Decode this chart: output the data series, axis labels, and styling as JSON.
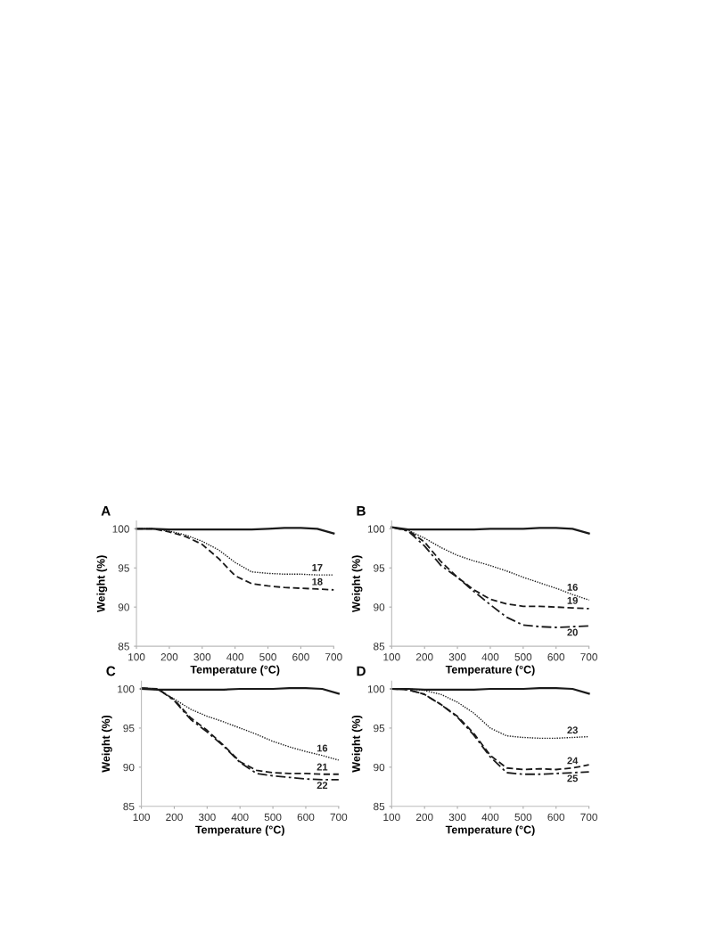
{
  "chart_data": [
    {
      "type": "line",
      "title": "A",
      "xlabel": "Temperature (°C)",
      "ylabel": "Weight (%)",
      "xlim": [
        100,
        700
      ],
      "xticks": [
        100,
        200,
        300,
        400,
        500,
        600,
        700
      ],
      "ylim": [
        85,
        101
      ],
      "yticks": [
        85,
        90,
        95,
        100
      ],
      "grid": false,
      "legend": false,
      "x": [
        100,
        150,
        200,
        250,
        300,
        350,
        400,
        450,
        500,
        550,
        600,
        650,
        700
      ],
      "series": [
        {
          "color": "#1a1a1a",
          "line_style": "solid",
          "values": [
            100,
            100,
            99.9,
            99.9,
            99.9,
            99.9,
            99.9,
            99.9,
            100,
            100.1,
            100.1,
            100,
            99.4
          ]
        },
        {
          "name": "17",
          "color": "#1a1a1a",
          "line_style": "dotted",
          "values": [
            100,
            100,
            99.7,
            99.2,
            98.4,
            97.3,
            95.7,
            94.5,
            94.3,
            94.2,
            94.2,
            94.1,
            94.1
          ]
        },
        {
          "name": "18",
          "color": "#1a1a1a",
          "line_style": "dashed",
          "values": [
            100,
            100,
            99.6,
            99.0,
            98.0,
            96.2,
            94.0,
            93.0,
            92.7,
            92.5,
            92.4,
            92.3,
            92.2
          ]
        }
      ]
    },
    {
      "type": "line",
      "title": "B",
      "xlabel": "Temperature (°C)",
      "ylabel": "Weight (%)",
      "xlim": [
        100,
        700
      ],
      "xticks": [
        100,
        200,
        300,
        400,
        500,
        600,
        700
      ],
      "ylim": [
        85,
        101
      ],
      "yticks": [
        85,
        90,
        95,
        100
      ],
      "grid": false,
      "legend": false,
      "x": [
        100,
        150,
        200,
        250,
        300,
        350,
        400,
        450,
        500,
        550,
        600,
        650,
        700
      ],
      "series": [
        {
          "color": "#1a1a1a",
          "line_style": "solid",
          "values": [
            100.2,
            99.9,
            99.9,
            99.9,
            99.9,
            99.9,
            100,
            100,
            100,
            100.1,
            100.1,
            100,
            99.4
          ]
        },
        {
          "name": "16",
          "color": "#1a1a1a",
          "line_style": "dotted",
          "values": [
            100.2,
            99.8,
            98.8,
            97.6,
            96.6,
            95.9,
            95.3,
            94.6,
            93.8,
            93.1,
            92.4,
            91.6,
            90.9
          ]
        },
        {
          "name": "19",
          "color": "#1a1a1a",
          "line_style": "dashed",
          "values": [
            100.2,
            99.8,
            98.3,
            95.8,
            93.8,
            92.2,
            91.0,
            90.4,
            90.1,
            90.1,
            90.0,
            89.9,
            89.8
          ]
        },
        {
          "name": "20",
          "color": "#1a1a1a",
          "line_style": "dashdot",
          "values": [
            100.2,
            99.7,
            97.8,
            95.3,
            93.8,
            92.0,
            90.3,
            88.7,
            87.7,
            87.5,
            87.4,
            87.5,
            87.6
          ]
        }
      ]
    },
    {
      "type": "line",
      "title": "C",
      "xlabel": "Temperature (°C)",
      "ylabel": "Weight (%)",
      "xlim": [
        100,
        700
      ],
      "xticks": [
        100,
        200,
        300,
        400,
        500,
        600,
        700
      ],
      "ylim": [
        85,
        101
      ],
      "yticks": [
        85,
        90,
        95,
        100
      ],
      "grid": false,
      "legend": false,
      "x": [
        100,
        150,
        200,
        250,
        300,
        350,
        400,
        450,
        500,
        550,
        600,
        650,
        700
      ],
      "series": [
        {
          "color": "#1a1a1a",
          "line_style": "solid",
          "values": [
            100,
            99.9,
            99.9,
            99.9,
            99.9,
            99.9,
            100,
            100,
            100,
            100.1,
            100.1,
            100,
            99.4
          ]
        },
        {
          "name": "16",
          "color": "#1a1a1a",
          "line_style": "dotted",
          "values": [
            100.1,
            99.9,
            98.7,
            97.4,
            96.5,
            95.8,
            95.0,
            94.2,
            93.3,
            92.6,
            92.0,
            91.5,
            90.9
          ]
        },
        {
          "name": "21",
          "color": "#1a1a1a",
          "line_style": "dashed",
          "values": [
            100.1,
            100,
            98.6,
            96.3,
            94.7,
            92.8,
            90.7,
            89.6,
            89.3,
            89.2,
            89.2,
            89.1,
            89.1
          ]
        },
        {
          "name": "22",
          "color": "#1a1a1a",
          "line_style": "dashdot",
          "values": [
            100.1,
            100,
            98.5,
            96.1,
            94.5,
            92.7,
            90.6,
            89.2,
            88.9,
            88.7,
            88.5,
            88.4,
            88.4
          ]
        }
      ]
    },
    {
      "type": "line",
      "title": "D",
      "xlabel": "Temperature (°C)",
      "ylabel": "Weight (%)",
      "xlim": [
        100,
        700
      ],
      "xticks": [
        100,
        200,
        300,
        400,
        500,
        600,
        700
      ],
      "ylim": [
        85,
        101
      ],
      "yticks": [
        85,
        90,
        95,
        100
      ],
      "grid": false,
      "legend": false,
      "x": [
        100,
        150,
        200,
        250,
        300,
        350,
        400,
        450,
        500,
        550,
        600,
        650,
        700
      ],
      "series": [
        {
          "color": "#1a1a1a",
          "line_style": "solid",
          "values": [
            100,
            100,
            99.9,
            99.9,
            99.9,
            99.9,
            100,
            100,
            100,
            100.1,
            100.1,
            100,
            99.4
          ]
        },
        {
          "name": "23",
          "color": "#1a1a1a",
          "line_style": "dotted",
          "values": [
            100,
            100,
            99.8,
            99.3,
            98.3,
            96.9,
            95.0,
            94.0,
            93.8,
            93.7,
            93.7,
            93.8,
            93.9
          ]
        },
        {
          "name": "24",
          "color": "#1a1a1a",
          "line_style": "dashed",
          "values": [
            100,
            99.9,
            99.3,
            98.0,
            96.5,
            94.3,
            91.5,
            89.9,
            89.7,
            89.8,
            89.7,
            89.9,
            90.3
          ]
        },
        {
          "name": "25",
          "color": "#1a1a1a",
          "line_style": "dashdot",
          "values": [
            100,
            99.9,
            99.3,
            98.0,
            96.4,
            94.1,
            91.3,
            89.3,
            89.1,
            89.1,
            89.2,
            89.3,
            89.4
          ]
        }
      ]
    }
  ]
}
